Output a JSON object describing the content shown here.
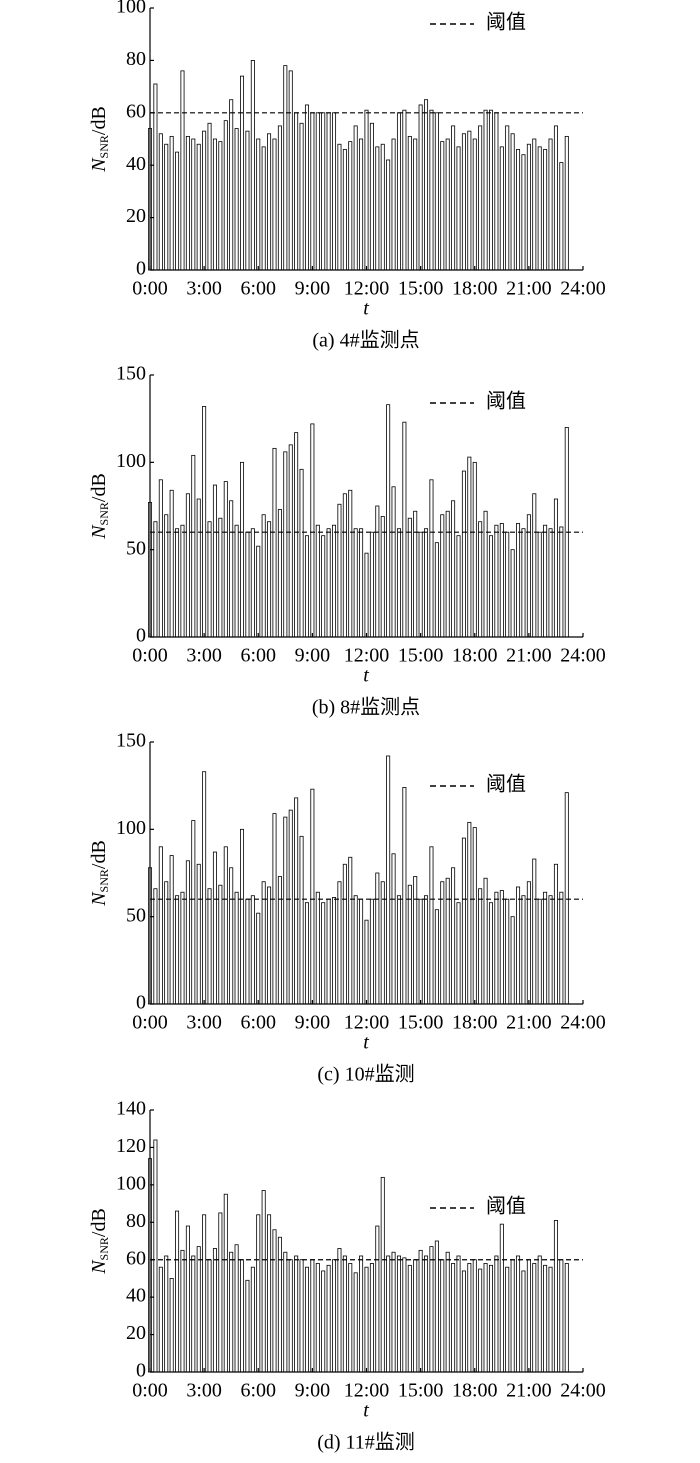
{
  "chart_data": [
    {
      "type": "bar",
      "caption": "(a) 4#监测点",
      "ylabel": {
        "symbol": "N",
        "subscript": "SNR",
        "unit": "/dB"
      },
      "xlabel": "t",
      "color": "#000000",
      "threshold": {
        "name": "阈值",
        "value": 60
      },
      "xlim": [
        0,
        24
      ],
      "ylim": [
        0,
        100
      ],
      "xticks": [
        {
          "value": 0,
          "label": "0:00"
        },
        {
          "value": 3,
          "label": "3:00"
        },
        {
          "value": 6,
          "label": "6:00"
        },
        {
          "value": 9,
          "label": "9:00"
        },
        {
          "value": 12,
          "label": "12:00"
        },
        {
          "value": 15,
          "label": "15:00"
        },
        {
          "value": 18,
          "label": "18:00"
        },
        {
          "value": 21,
          "label": "21:00"
        },
        {
          "value": 24,
          "label": "24:00"
        }
      ],
      "yticks": [
        0,
        20,
        40,
        60,
        80,
        100
      ],
      "x": [
        0,
        0.3,
        0.6,
        0.9,
        1.2,
        1.5,
        1.8,
        2.1,
        2.4,
        2.7,
        3,
        3.3,
        3.6,
        3.9,
        4.2,
        4.5,
        4.8,
        5.1,
        5.4,
        5.7,
        6,
        6.3,
        6.6,
        6.9,
        7.2,
        7.5,
        7.8,
        8.1,
        8.4,
        8.7,
        9,
        9.3,
        9.6,
        9.9,
        10.2,
        10.5,
        10.8,
        11.1,
        11.4,
        11.7,
        12,
        12.3,
        12.6,
        12.9,
        13.2,
        13.5,
        13.8,
        14.1,
        14.4,
        14.7,
        15,
        15.3,
        15.6,
        15.9,
        16.2,
        16.5,
        16.8,
        17.1,
        17.4,
        17.7,
        18,
        18.3,
        18.6,
        18.9,
        19.2,
        19.5,
        19.8,
        20.1,
        20.4,
        20.7,
        21,
        21.3,
        21.6,
        21.9,
        22.2,
        22.5,
        22.8,
        23.1
      ],
      "values": [
        54,
        71,
        52,
        48,
        51,
        45,
        76,
        51,
        50,
        48,
        53,
        56,
        50,
        49,
        57,
        65,
        54,
        74,
        53,
        80,
        50,
        47,
        52,
        50,
        55,
        78,
        76,
        60,
        56,
        63,
        60,
        60,
        60,
        60,
        60,
        48,
        46,
        49,
        55,
        50,
        61,
        56,
        47,
        48,
        42,
        50,
        60,
        61,
        51,
        50,
        63,
        65,
        61,
        60,
        49,
        50,
        55,
        47,
        52,
        53,
        50,
        55,
        61,
        61,
        60,
        47,
        55,
        52,
        46,
        44,
        48,
        50,
        47,
        46,
        50,
        55,
        41,
        51
      ]
    },
    {
      "type": "bar",
      "caption": "(b) 8#监测点",
      "ylabel": {
        "symbol": "N",
        "subscript": "SNR",
        "unit": "/dB"
      },
      "xlabel": "t",
      "color": "#000000",
      "threshold": {
        "name": "阈值",
        "value": 60
      },
      "xlim": [
        0,
        24
      ],
      "ylim": [
        0,
        150
      ],
      "xticks": [
        {
          "value": 0,
          "label": "0:00"
        },
        {
          "value": 3,
          "label": "3:00"
        },
        {
          "value": 6,
          "label": "6:00"
        },
        {
          "value": 9,
          "label": "9:00"
        },
        {
          "value": 12,
          "label": "12:00"
        },
        {
          "value": 15,
          "label": "15:00"
        },
        {
          "value": 18,
          "label": "18:00"
        },
        {
          "value": 21,
          "label": "21:00"
        },
        {
          "value": 24,
          "label": "24:00"
        }
      ],
      "yticks": [
        0,
        50,
        100,
        150
      ],
      "x": [
        0,
        0.3,
        0.6,
        0.9,
        1.2,
        1.5,
        1.8,
        2.1,
        2.4,
        2.7,
        3,
        3.3,
        3.6,
        3.9,
        4.2,
        4.5,
        4.8,
        5.1,
        5.4,
        5.7,
        6,
        6.3,
        6.6,
        6.9,
        7.2,
        7.5,
        7.8,
        8.1,
        8.4,
        8.7,
        9,
        9.3,
        9.6,
        9.9,
        10.2,
        10.5,
        10.8,
        11.1,
        11.4,
        11.7,
        12,
        12.3,
        12.6,
        12.9,
        13.2,
        13.5,
        13.8,
        14.1,
        14.4,
        14.7,
        15,
        15.3,
        15.6,
        15.9,
        16.2,
        16.5,
        16.8,
        17.1,
        17.4,
        17.7,
        18,
        18.3,
        18.6,
        18.9,
        19.2,
        19.5,
        19.8,
        20.1,
        20.4,
        20.7,
        21,
        21.3,
        21.6,
        21.9,
        22.2,
        22.5,
        22.8,
        23.1
      ],
      "values": [
        77,
        66,
        90,
        70,
        84,
        62,
        64,
        82,
        104,
        79,
        132,
        66,
        87,
        68,
        89,
        78,
        64,
        100,
        60,
        62,
        52,
        70,
        66,
        108,
        73,
        106,
        110,
        117,
        96,
        58,
        122,
        64,
        58,
        62,
        64,
        76,
        82,
        84,
        62,
        62,
        48,
        60,
        75,
        69,
        133,
        86,
        62,
        123,
        68,
        72,
        60,
        62,
        90,
        54,
        70,
        72,
        78,
        58,
        95,
        103,
        100,
        66,
        72,
        58,
        64,
        65,
        60,
        50,
        65,
        62,
        70,
        82,
        60,
        64,
        62,
        79,
        63,
        120
      ]
    },
    {
      "type": "bar",
      "caption": "(c) 10#监测",
      "ylabel": {
        "symbol": "N",
        "subscript": "SNR",
        "unit": "/dB"
      },
      "xlabel": "t",
      "color": "#000000",
      "threshold": {
        "name": "阈值",
        "value": 60
      },
      "xlim": [
        0,
        24
      ],
      "ylim": [
        0,
        150
      ],
      "xticks": [
        {
          "value": 0,
          "label": "0:00"
        },
        {
          "value": 3,
          "label": "3:00"
        },
        {
          "value": 6,
          "label": "6:00"
        },
        {
          "value": 9,
          "label": "9:00"
        },
        {
          "value": 12,
          "label": "12:00"
        },
        {
          "value": 15,
          "label": "15:00"
        },
        {
          "value": 18,
          "label": "18:00"
        },
        {
          "value": 21,
          "label": "21:00"
        },
        {
          "value": 24,
          "label": "24:00"
        }
      ],
      "yticks": [
        0,
        50,
        100,
        150
      ],
      "x": [
        0,
        0.3,
        0.6,
        0.9,
        1.2,
        1.5,
        1.8,
        2.1,
        2.4,
        2.7,
        3,
        3.3,
        3.6,
        3.9,
        4.2,
        4.5,
        4.8,
        5.1,
        5.4,
        5.7,
        6,
        6.3,
        6.6,
        6.9,
        7.2,
        7.5,
        7.8,
        8.1,
        8.4,
        8.7,
        9,
        9.3,
        9.6,
        9.9,
        10.2,
        10.5,
        10.8,
        11.1,
        11.4,
        11.7,
        12,
        12.3,
        12.6,
        12.9,
        13.2,
        13.5,
        13.8,
        14.1,
        14.4,
        14.7,
        15,
        15.3,
        15.6,
        15.9,
        16.2,
        16.5,
        16.8,
        17.1,
        17.4,
        17.7,
        18,
        18.3,
        18.6,
        18.9,
        19.2,
        19.5,
        19.8,
        20.1,
        20.4,
        20.7,
        21,
        21.3,
        21.6,
        21.9,
        22.2,
        22.5,
        22.8,
        23.1
      ],
      "values": [
        78,
        66,
        90,
        70,
        85,
        62,
        64,
        82,
        105,
        80,
        133,
        66,
        87,
        68,
        90,
        78,
        64,
        100,
        60,
        62,
        52,
        70,
        67,
        109,
        73,
        107,
        111,
        118,
        96,
        58,
        123,
        64,
        58,
        60,
        61,
        70,
        80,
        84,
        62,
        60,
        48,
        60,
        75,
        70,
        142,
        86,
        62,
        124,
        68,
        73,
        60,
        62,
        90,
        54,
        70,
        72,
        78,
        58,
        95,
        104,
        101,
        66,
        72,
        58,
        64,
        65,
        60,
        50,
        67,
        62,
        70,
        83,
        60,
        64,
        62,
        80,
        64,
        121
      ]
    },
    {
      "type": "bar",
      "caption": "(d) 11#监测",
      "ylabel": {
        "symbol": "N",
        "subscript": "SNR",
        "unit": "/dB"
      },
      "xlabel": "t",
      "color": "#000000",
      "threshold": {
        "name": "阈值",
        "value": 60
      },
      "xlim": [
        0,
        24
      ],
      "ylim": [
        0,
        140
      ],
      "xticks": [
        {
          "value": 0,
          "label": "0:00"
        },
        {
          "value": 3,
          "label": "3:00"
        },
        {
          "value": 6,
          "label": "6:00"
        },
        {
          "value": 9,
          "label": "9:00"
        },
        {
          "value": 12,
          "label": "12:00"
        },
        {
          "value": 15,
          "label": "15:00"
        },
        {
          "value": 18,
          "label": "18:00"
        },
        {
          "value": 21,
          "label": "21:00"
        },
        {
          "value": 24,
          "label": "24:00"
        }
      ],
      "yticks": [
        0,
        20,
        40,
        60,
        80,
        100,
        120,
        140
      ],
      "x": [
        0,
        0.3,
        0.6,
        0.9,
        1.2,
        1.5,
        1.8,
        2.1,
        2.4,
        2.7,
        3,
        3.3,
        3.6,
        3.9,
        4.2,
        4.5,
        4.8,
        5.1,
        5.4,
        5.7,
        6,
        6.3,
        6.6,
        6.9,
        7.2,
        7.5,
        7.8,
        8.1,
        8.4,
        8.7,
        9,
        9.3,
        9.6,
        9.9,
        10.2,
        10.5,
        10.8,
        11.1,
        11.4,
        11.7,
        12,
        12.3,
        12.6,
        12.9,
        13.2,
        13.5,
        13.8,
        14.1,
        14.4,
        14.7,
        15,
        15.3,
        15.6,
        15.9,
        16.2,
        16.5,
        16.8,
        17.1,
        17.4,
        17.7,
        18,
        18.3,
        18.6,
        18.9,
        19.2,
        19.5,
        19.8,
        20.1,
        20.4,
        20.7,
        21,
        21.3,
        21.6,
        21.9,
        22.2,
        22.5,
        22.8,
        23.1
      ],
      "values": [
        114,
        124,
        56,
        62,
        50,
        86,
        65,
        78,
        62,
        67,
        84,
        60,
        66,
        85,
        95,
        64,
        68,
        60,
        49,
        56,
        84,
        97,
        84,
        76,
        72,
        64,
        60,
        62,
        60,
        56,
        60,
        58,
        54,
        57,
        60,
        66,
        62,
        58,
        53,
        62,
        56,
        58,
        78,
        104,
        62,
        64,
        62,
        61,
        57,
        60,
        65,
        62,
        67,
        70,
        60,
        64,
        58,
        62,
        54,
        58,
        60,
        55,
        58,
        57,
        62,
        79,
        56,
        60,
        62,
        54,
        60,
        58,
        62,
        57,
        56,
        81,
        60,
        58
      ]
    }
  ]
}
